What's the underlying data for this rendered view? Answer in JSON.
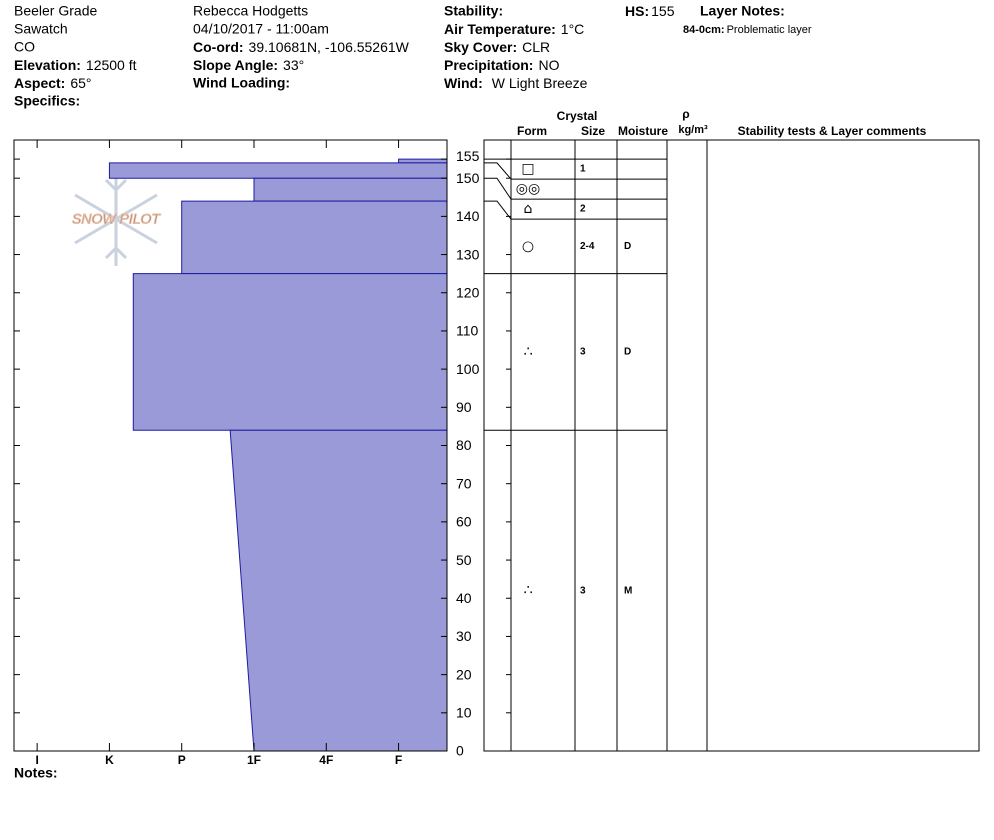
{
  "header": {
    "location": "Beeler Grade",
    "range": "Sawatch",
    "state": "CO",
    "elevation": {
      "label": "Elevation:",
      "value": "12500 ft"
    },
    "aspect": {
      "label": "Aspect:",
      "value": "65°"
    },
    "specifics": "Specifics:",
    "observer": "Rebecca Hodgetts",
    "datetime": "04/10/2017 - 11:00am",
    "coord": {
      "label": "Co-ord:",
      "value": "39.10681N, -106.55261W"
    },
    "slope_angle": {
      "label": "Slope Angle:",
      "value": "33°"
    },
    "wind_loading": "Wind Loading:",
    "stability": "Stability:",
    "air_temperature": {
      "label": "Air Temperature:",
      "value": "1°C"
    },
    "sky_cover": {
      "label": "Sky Cover:",
      "value": "CLR"
    },
    "precipitation": {
      "label": "Precipitation:",
      "value": "NO"
    },
    "wind": {
      "label": "Wind:",
      "value": "W Light Breeze"
    },
    "hs": {
      "label": "HS:",
      "value": "155"
    },
    "layer_notes": {
      "title": "Layer Notes:",
      "notes": [
        {
          "range": "84-0cm:",
          "text": "Problematic layer"
        }
      ]
    }
  },
  "logo": "SNOW PILOT",
  "notes": "Notes:",
  "chart_data": {
    "type": "hardness-profile",
    "ylim": [
      0,
      160
    ],
    "yticks": [
      0,
      10,
      20,
      30,
      40,
      50,
      60,
      70,
      80,
      90,
      100,
      110,
      120,
      130,
      140,
      150,
      155
    ],
    "xlim": [
      6.32,
      0.33
    ],
    "xticks": [
      {
        "value": 6,
        "label": "I"
      },
      {
        "value": 5,
        "label": "K"
      },
      {
        "value": 4,
        "label": "P"
      },
      {
        "value": 3,
        "label": "1F"
      },
      {
        "value": 2,
        "label": "4F"
      },
      {
        "value": 1,
        "label": "F"
      }
    ],
    "color": "#9a9ad8",
    "edge_color": "#1c1ca0",
    "layers": [
      {
        "top": 155,
        "bottom": 154,
        "hardness": [
          1,
          1
        ]
      },
      {
        "top": 154,
        "bottom": 150,
        "hardness": [
          5,
          5
        ]
      },
      {
        "top": 150,
        "bottom": 144,
        "hardness": [
          3,
          3
        ]
      },
      {
        "top": 144,
        "bottom": 125,
        "hardness": [
          4,
          4
        ]
      },
      {
        "top": 125,
        "bottom": 84,
        "hardness": [
          4.67,
          4.67
        ]
      },
      {
        "top": 84,
        "bottom": 0,
        "hardness": [
          3.33,
          3
        ]
      }
    ]
  },
  "layer_table": {
    "headers": {
      "crystal": "Crystal",
      "form": "Form",
      "size": "Size",
      "moisture": "Moisture",
      "rho": "ρ",
      "density_unit": "kg/m³",
      "comments": "Stability tests & Layer comments"
    },
    "rows": [
      {
        "form": "□",
        "size": "1",
        "moisture": null
      },
      {
        "form": "◎◎",
        "size": null,
        "moisture": null
      },
      {
        "form": "⌂",
        "size": "2",
        "moisture": null
      },
      {
        "form": "○",
        "size": "2-4",
        "moisture": "D"
      },
      {
        "form": "∴",
        "size": "3",
        "moisture": "D"
      },
      {
        "form": "∴",
        "size": "3",
        "moisture": "M"
      }
    ]
  }
}
